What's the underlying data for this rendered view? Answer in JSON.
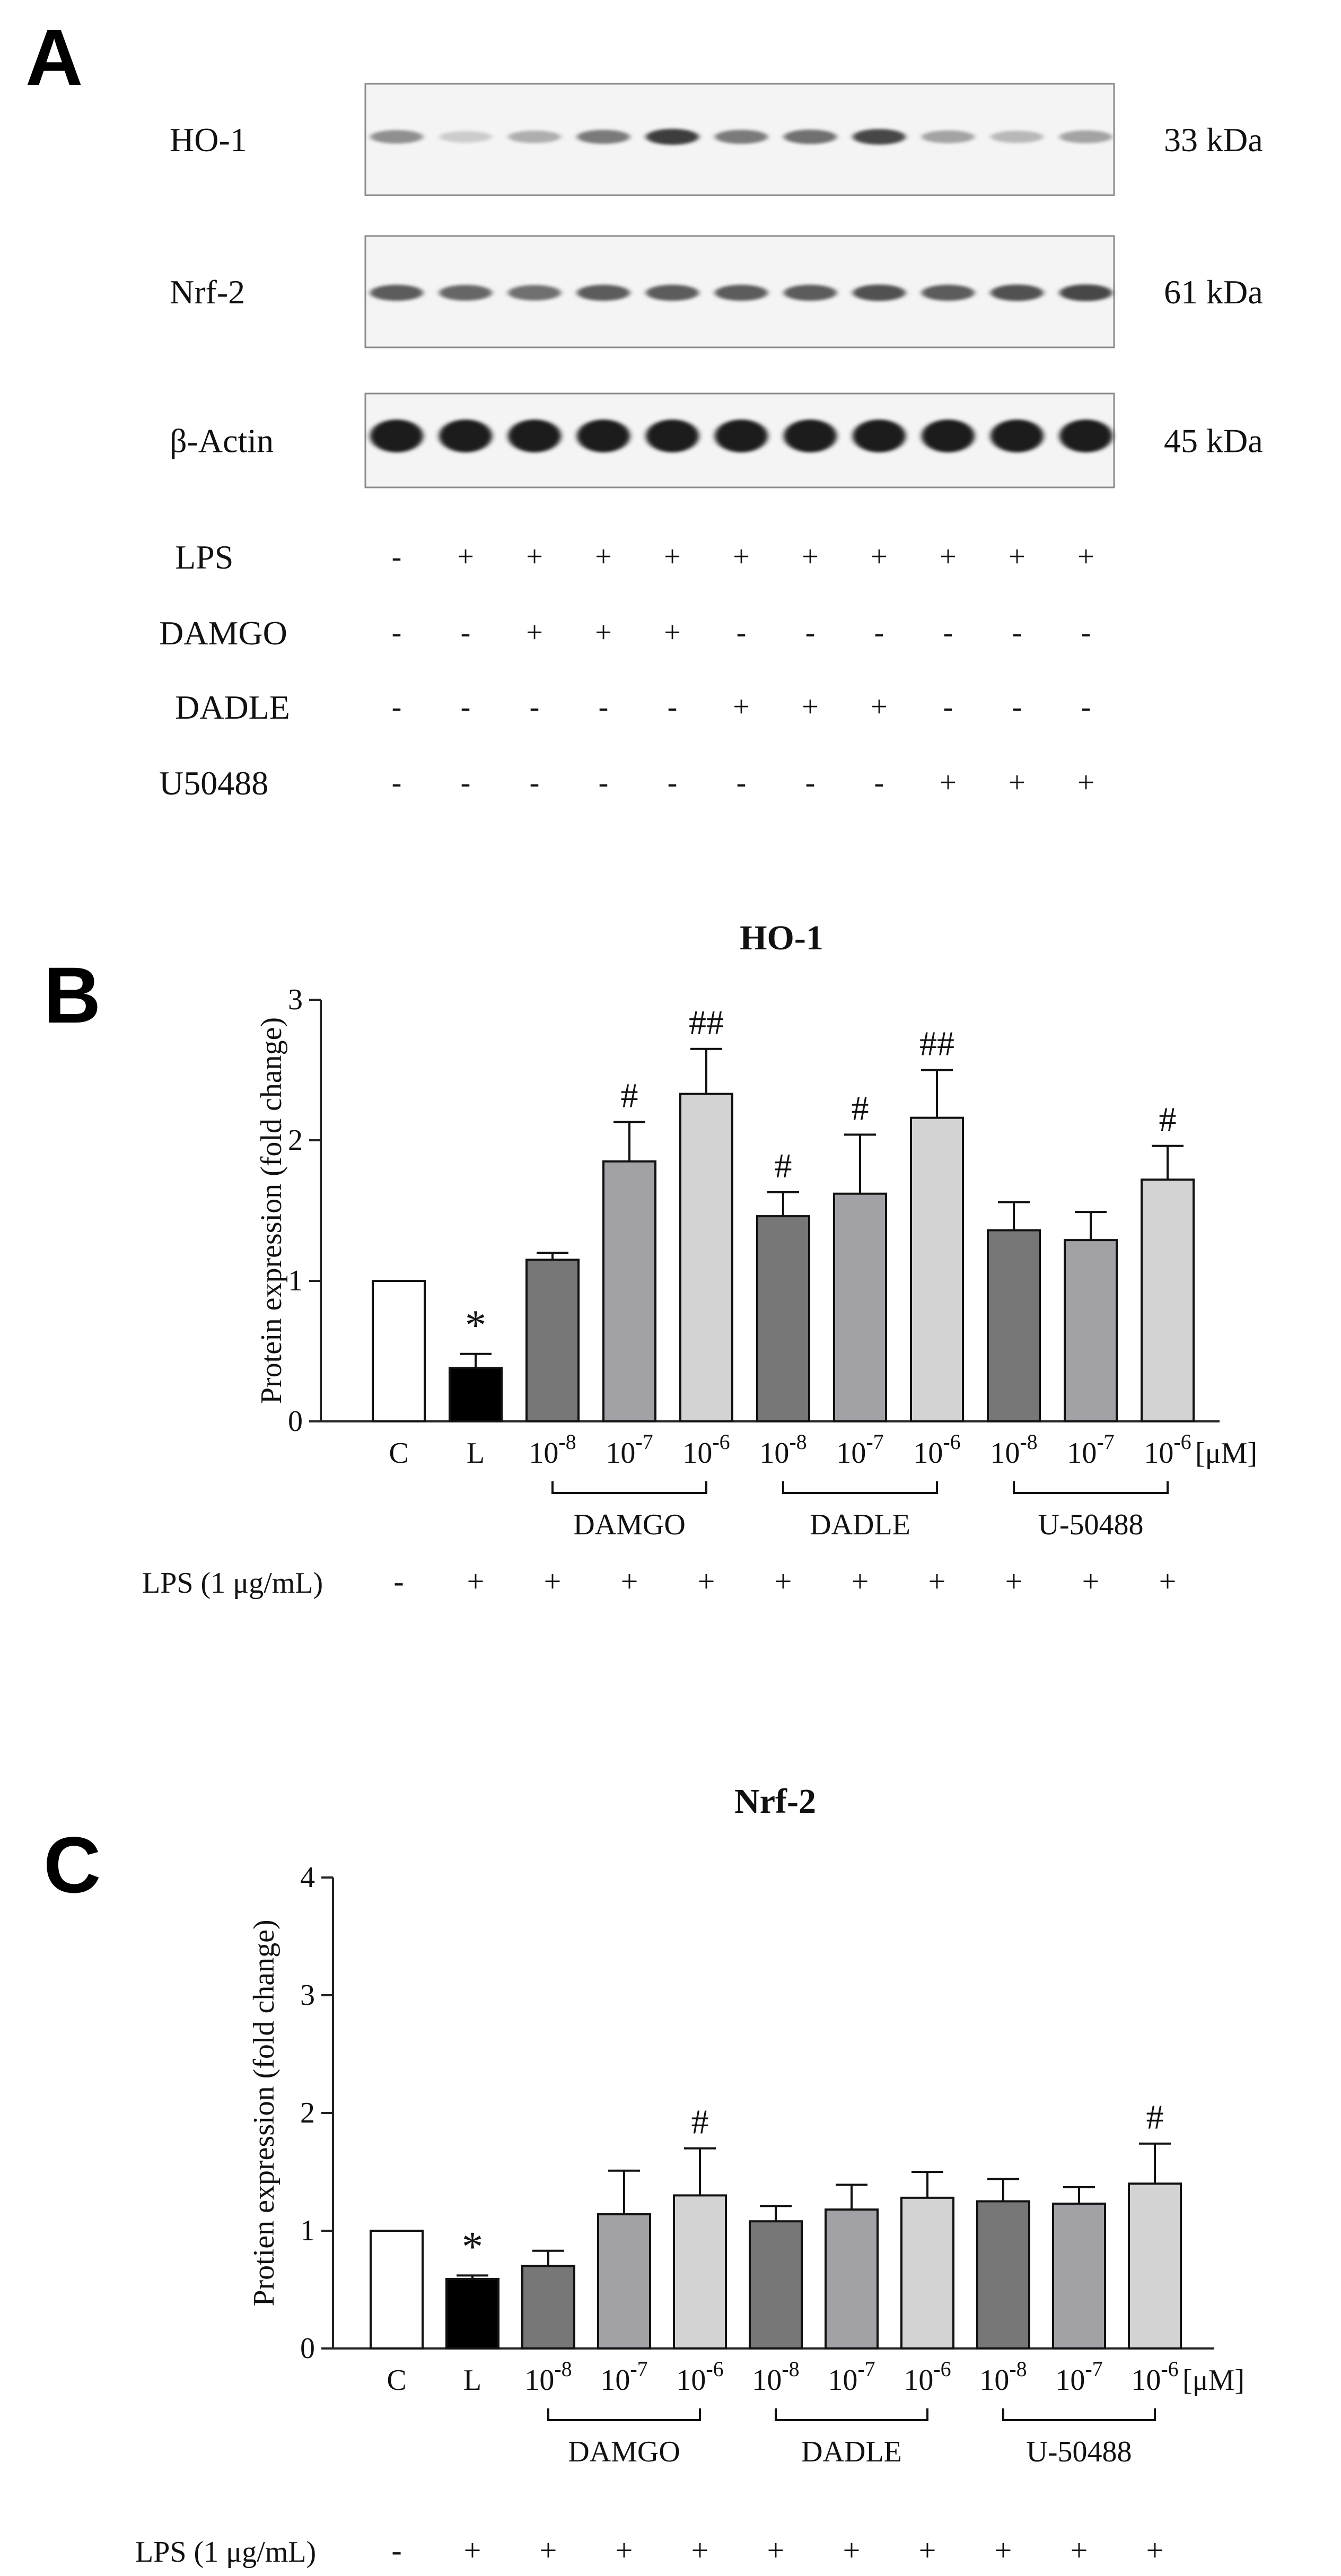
{
  "panel_a": {
    "letter": "A",
    "blots": [
      {
        "name": "HO-1",
        "mw": "33 kDa",
        "intensities": [
          0.45,
          0.15,
          0.3,
          0.55,
          0.85,
          0.55,
          0.6,
          0.8,
          0.35,
          0.25,
          0.35
        ]
      },
      {
        "name": "Nrf-2",
        "mw": "61 kDa",
        "intensities": [
          0.7,
          0.65,
          0.6,
          0.7,
          0.7,
          0.7,
          0.7,
          0.75,
          0.7,
          0.75,
          0.8
        ]
      },
      {
        "name": "β-Actin",
        "mw": "45 kDa",
        "intensities": [
          1,
          1,
          1,
          1,
          1,
          1,
          1,
          1,
          1,
          1,
          1
        ]
      }
    ],
    "treatments": [
      {
        "name": "LPS",
        "marks": [
          "-",
          "+",
          "+",
          "+",
          "+",
          "+",
          "+",
          "+",
          "+",
          "+",
          "+"
        ]
      },
      {
        "name": "DAMGO",
        "marks": [
          "-",
          "-",
          "+",
          "+",
          "+",
          "-",
          "-",
          "-",
          "-",
          "-",
          "-"
        ]
      },
      {
        "name": "DADLE",
        "marks": [
          "-",
          "-",
          "-",
          "-",
          "-",
          "+",
          "+",
          "+",
          "-",
          "-",
          "-"
        ]
      },
      {
        "name": "U50488",
        "marks": [
          "-",
          "-",
          "-",
          "-",
          "-",
          "-",
          "-",
          "-",
          "+",
          "+",
          "+"
        ]
      }
    ]
  },
  "chart_data": [
    {
      "panel": "B",
      "type": "bar",
      "title": "HO-1",
      "ylabel": "Protein expression (fold change)",
      "xlabel": "",
      "ylim": [
        0,
        3
      ],
      "yticks": [
        0,
        1,
        2,
        3
      ],
      "categories": [
        "C",
        "L",
        "10-8",
        "10-7",
        "10-6",
        "10-8",
        "10-7",
        "10-6",
        "10-8",
        "10-7",
        "10-6"
      ],
      "unit_label": "[μM]",
      "values": [
        1.0,
        0.38,
        1.15,
        1.85,
        2.33,
        1.46,
        1.62,
        2.16,
        1.36,
        1.29,
        1.72
      ],
      "errors": [
        0.0,
        0.1,
        0.05,
        0.28,
        0.32,
        0.17,
        0.42,
        0.34,
        0.2,
        0.2,
        0.24
      ],
      "annotations": [
        "",
        "*",
        "",
        "#",
        "##",
        "#",
        "#",
        "##",
        "",
        "",
        "#"
      ],
      "fills": [
        "#ffffff",
        "#000000",
        "#777777",
        "#a2a2a6",
        "#d3d3d3",
        "#777777",
        "#a2a2a6",
        "#d3d3d3",
        "#777777",
        "#a2a2a6",
        "#d3d3d3"
      ],
      "groups": [
        {
          "label": "DAMGO",
          "from": 2,
          "to": 4
        },
        {
          "label": "DADLE",
          "from": 5,
          "to": 7
        },
        {
          "label": "U-50488",
          "from": 8,
          "to": 10
        }
      ],
      "lps_label": "LPS (1 μg/mL)",
      "lps_marks": [
        "-",
        "+",
        "+",
        "+",
        "+",
        "+",
        "+",
        "+",
        "+",
        "+",
        "+"
      ]
    },
    {
      "panel": "C",
      "type": "bar",
      "title": "Nrf-2",
      "ylabel": "Protien expression (fold change)",
      "xlabel": "",
      "ylim": [
        0,
        4
      ],
      "yticks": [
        0,
        1,
        2,
        3,
        4
      ],
      "categories": [
        "C",
        "L",
        "10-8",
        "10-7",
        "10-6",
        "10-8",
        "10-7",
        "10-6",
        "10-8",
        "10-7",
        "10-6"
      ],
      "unit_label": "[μM]",
      "values": [
        1.0,
        0.59,
        0.7,
        1.14,
        1.3,
        1.08,
        1.18,
        1.28,
        1.25,
        1.23,
        1.4
      ],
      "errors": [
        0.0,
        0.03,
        0.13,
        0.37,
        0.4,
        0.13,
        0.21,
        0.22,
        0.19,
        0.14,
        0.34
      ],
      "annotations": [
        "",
        "*",
        "",
        "",
        "#",
        "",
        "",
        "",
        "",
        "",
        "#"
      ],
      "fills": [
        "#ffffff",
        "#000000",
        "#777777",
        "#a2a2a6",
        "#d3d3d3",
        "#777777",
        "#a2a2a6",
        "#d3d3d3",
        "#777777",
        "#a2a2a6",
        "#d3d3d3"
      ],
      "groups": [
        {
          "label": "DAMGO",
          "from": 2,
          "to": 4
        },
        {
          "label": "DADLE",
          "from": 5,
          "to": 7
        },
        {
          "label": "U-50488",
          "from": 8,
          "to": 10
        }
      ],
      "lps_label": "LPS (1 μg/mL)",
      "lps_marks": [
        "-",
        "+",
        "+",
        "+",
        "+",
        "+",
        "+",
        "+",
        "+",
        "+",
        "+"
      ]
    }
  ]
}
